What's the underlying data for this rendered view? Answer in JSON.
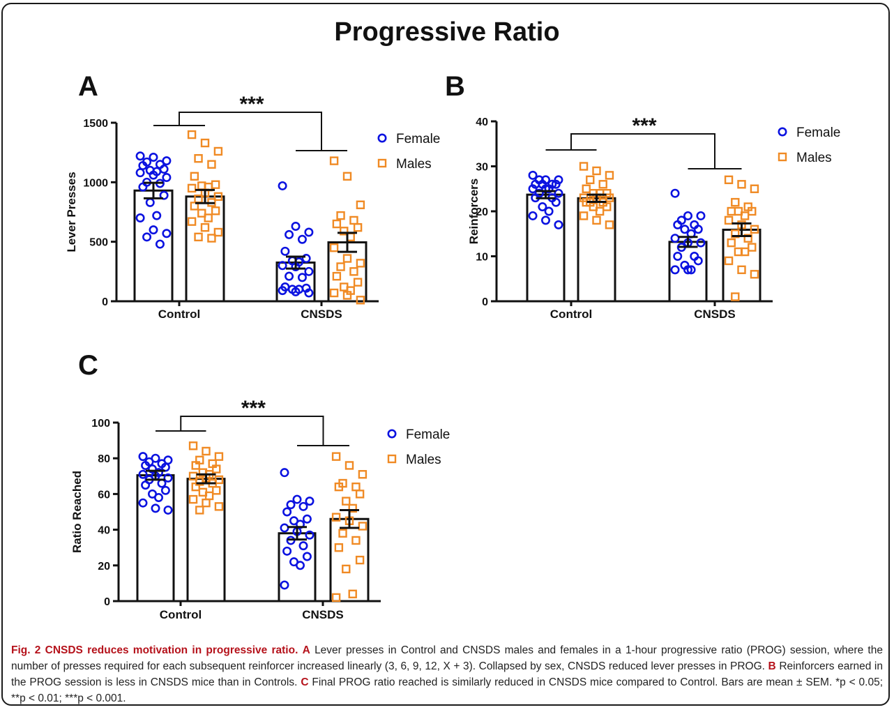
{
  "figure": {
    "title": "Progressive Ratio"
  },
  "colors": {
    "female": "#0b12e0",
    "males": "#f08a24",
    "caption_accent": "#b5121b"
  },
  "chart_data": [
    {
      "panel": "A",
      "type": "bar",
      "categories": [
        "Control",
        "CNSDS"
      ],
      "ylabel": "Lever Presses",
      "ylim": [
        0,
        1500
      ],
      "yticks": [
        0,
        500,
        1000,
        1500
      ],
      "significance": "***",
      "legend_position": "top-right",
      "series": [
        {
          "name": "Female",
          "marker": "circle",
          "values": [
            930,
            325
          ],
          "sem": [
            65,
            50
          ],
          "points": [
            [
              1220,
              1210,
              1180,
              1170,
              1150,
              1140,
              1110,
              1100,
              1090,
              1080,
              1060,
              1040,
              1000,
              990,
              960,
              890,
              830,
              720,
              700,
              600,
              570,
              540,
              480
            ],
            [
              970,
              630,
              580,
              560,
              520,
              420,
              360,
              340,
              330,
              300,
              290,
              250,
              210,
              200,
              120,
              110,
              100,
              100,
              90,
              80,
              70
            ]
          ]
        },
        {
          "name": "Males",
          "marker": "square",
          "values": [
            880,
            495
          ],
          "sem": [
            55,
            80
          ],
          "points": [
            [
              1400,
              1330,
              1260,
              1200,
              1150,
              1050,
              980,
              970,
              960,
              950,
              910,
              880,
              860,
              830,
              800,
              760,
              740,
              700,
              670,
              620,
              580,
              540,
              530
            ],
            [
              1180,
              1050,
              810,
              720,
              680,
              650,
              620,
              590,
              540,
              450,
              360,
              320,
              290,
              250,
              210,
              160,
              120,
              90,
              70,
              50,
              10
            ]
          ]
        }
      ]
    },
    {
      "panel": "B",
      "type": "bar",
      "categories": [
        "Control",
        "CNSDS"
      ],
      "ylabel": "Reinforcers",
      "ylim": [
        0,
        40
      ],
      "yticks": [
        0,
        10,
        20,
        30,
        40
      ],
      "significance": "***",
      "legend_position": "top-right",
      "series": [
        {
          "name": "Female",
          "marker": "circle",
          "values": [
            23.7,
            13.2
          ],
          "sem": [
            0.8,
            1.1
          ],
          "points": [
            [
              28,
              27,
              27,
              27,
              26,
              26,
              26,
              26,
              25,
              25,
              25,
              24,
              24,
              23,
              23,
              22,
              21,
              20,
              19,
              18,
              17
            ],
            [
              24,
              19,
              19,
              18,
              17,
              17,
              16,
              16,
              15,
              14,
              13,
              13,
              12,
              10,
              10,
              9,
              8,
              7,
              7,
              7
            ]
          ]
        },
        {
          "name": "Males",
          "marker": "square",
          "values": [
            22.9,
            15.9
          ],
          "sem": [
            0.8,
            1.4
          ],
          "points": [
            [
              30,
              29,
              28,
              27,
              26,
              25,
              24,
              24,
              24,
              23,
              23,
              23,
              22,
              22,
              22,
              21,
              21,
              20,
              19,
              18,
              17
            ],
            [
              27,
              26,
              25,
              22,
              21,
              20,
              20,
              20,
              19,
              18,
              17,
              16,
              15,
              14,
              13,
              12,
              11,
              11,
              9,
              7,
              6,
              1
            ]
          ]
        }
      ]
    },
    {
      "panel": "C",
      "type": "bar",
      "categories": [
        "Control",
        "CNSDS"
      ],
      "ylabel": "Ratio Reached",
      "ylim": [
        0,
        100
      ],
      "yticks": [
        0,
        20,
        40,
        60,
        80,
        100
      ],
      "significance": "***",
      "legend_position": "top-right",
      "series": [
        {
          "name": "Female",
          "marker": "circle",
          "values": [
            70.5,
            38
          ],
          "sem": [
            2.5,
            3.5
          ],
          "points": [
            [
              81,
              80,
              79,
              78,
              77,
              76,
              75,
              74,
              72,
              71,
              70,
              69,
              68,
              66,
              65,
              62,
              60,
              58,
              55,
              52,
              51
            ],
            [
              72,
              57,
              56,
              54,
              53,
              50,
              46,
              45,
              43,
              41,
              39,
              37,
              34,
              31,
              28,
              25,
              22,
              20,
              9
            ]
          ]
        },
        {
          "name": "Males",
          "marker": "square",
          "values": [
            68.5,
            46
          ],
          "sem": [
            2.5,
            5
          ],
          "points": [
            [
              87,
              84,
              81,
              79,
              77,
              76,
              74,
              72,
              71,
              70,
              69,
              68,
              67,
              66,
              64,
              62,
              61,
              59,
              57,
              55,
              53,
              51
            ],
            [
              81,
              76,
              71,
              66,
              64,
              64,
              60,
              56,
              52,
              47,
              45,
              42,
              38,
              34,
              30,
              23,
              18,
              4,
              2
            ]
          ]
        }
      ]
    }
  ],
  "caption": {
    "title": "Fig. 2 CNSDS reduces motivation in progressive ratio.",
    "a_letter": "A",
    "a_text": "Lever presses in Control and CNSDS males and females in a 1-hour progressive ratio (PROG) session, where the number of presses required for each subsequent reinforcer increased linearly (3, 6, 9, 12, X + 3). Collapsed by sex, CNSDS reduced lever presses in PROG.",
    "b_letter": "B",
    "b_text": "Reinforcers earned in the PROG session is less in CNSDS mice than in Controls.",
    "c_letter": "C",
    "c_text": "Final PROG ratio reached is similarly reduced in CNSDS mice compared to Control. Bars are mean ± SEM. *p < 0.05; **p < 0.01; ***p < 0.001."
  }
}
